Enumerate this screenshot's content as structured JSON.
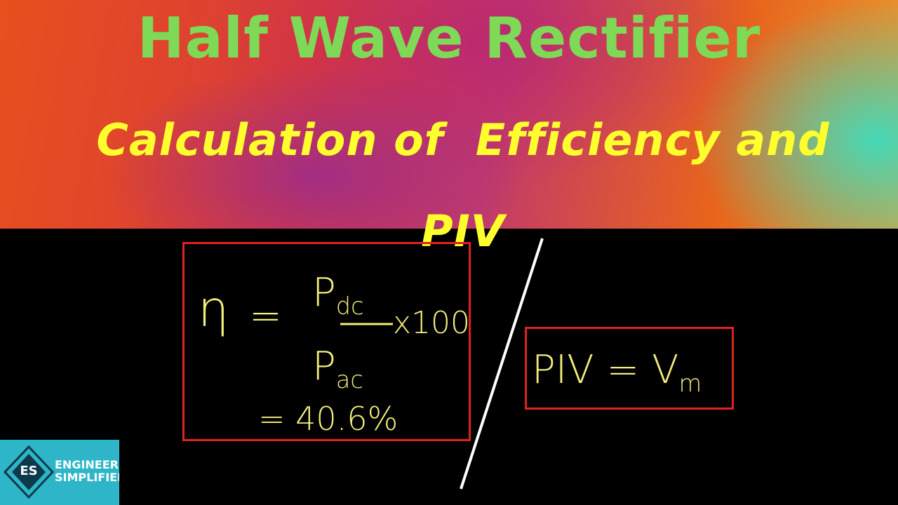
{
  "header": {
    "title": "Half Wave Rectifier",
    "subtitle": "Calculation of  Efficiency and PIV"
  },
  "efficiency_box": {
    "symbol": "η",
    "equals": "=",
    "numerator": {
      "base": "P",
      "sub": "dc"
    },
    "denominator": {
      "base": "P",
      "sub": "ac"
    },
    "multiplier": "x100",
    "result": "= 40.6%"
  },
  "piv_box": {
    "lhs": "PIV",
    "equals": "=",
    "rhs": {
      "base": "V",
      "sub": "m"
    }
  },
  "logo": {
    "initials": "ES",
    "line1": "ENGINEERING",
    "line2": "SIMPLIFIED"
  }
}
